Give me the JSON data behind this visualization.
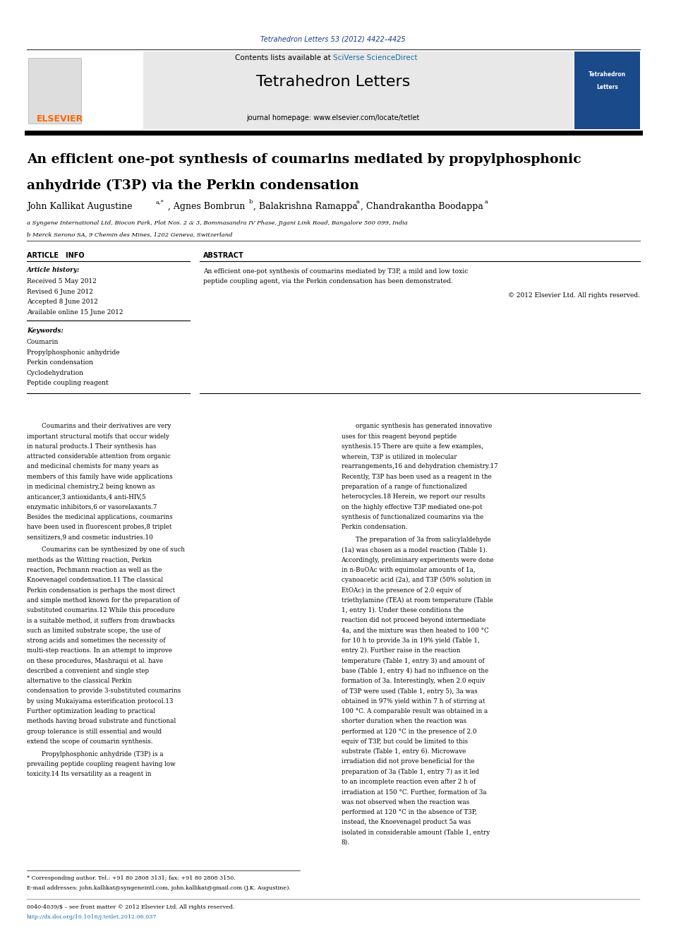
{
  "page_width": 9.92,
  "page_height": 13.23,
  "bg_color": "#ffffff",
  "top_citation": "Tetrahedron Letters 53 (2012) 4422–4425",
  "top_citation_color": "#1a3a8c",
  "header_bg": "#e8e8e8",
  "header_text": "Contents lists available at ",
  "header_sciverse": "SciVerse ScienceDirect",
  "header_sciverse_color": "#1a6fa8",
  "journal_name": "Tetrahedron Letters",
  "journal_homepage": "journal homepage: www.elsevier.com/locate/tetlet",
  "article_title_line1": "An efficient one-pot synthesis of coumarins mediated by propylphosphonic",
  "article_title_line2": "anhydride (T3P) via the Perkin condensation",
  "affil_a": "a Syngene International Ltd, Biocon Park, Plot Nos. 2 & 3, Bommasandra IV Phase, Jigani Link Road, Bangalore 560 099, India",
  "affil_b": "b Merck Serono SA, 9 Chemin des Mines, 1202 Geneva, Switzerland",
  "article_info_header": "ARTICLE   INFO",
  "abstract_header": "ABSTRACT",
  "article_history_label": "Article history:",
  "received": "Received 5 May 2012",
  "revised": "Revised 6 June 2012",
  "accepted": "Accepted 8 June 2012",
  "available": "Available online 15 June 2012",
  "keywords_label": "Keywords:",
  "keywords": [
    "Coumarin",
    "Propylphosphonic anhydride",
    "Perkin condensation",
    "Cyclodehydration",
    "Peptide coupling reagent"
  ],
  "abstract_text": "An efficient one-pot synthesis of coumarins mediated by T3P, a mild and low toxic peptide coupling agent, via the Perkin condensation has been demonstrated.",
  "copyright": "© 2012 Elsevier Ltd. All rights reserved.",
  "body_col1_para1": "Coumarins and their derivatives are very important structural motifs that occur widely in natural products.1 Their synthesis has attracted considerable attention from organic and medicinal chemists for many years as members of this family have wide applications in medicinal chemistry,2 being known as anticancer,3 antioxidants,4 anti-HIV,5 enzymatic inhibitors,6 or vasorelaxants.7 Besides the medicinal applications, coumarins have been used in fluorescent probes,8 triplet sensitizers,9 and cosmetic industries.10",
  "body_col1_para2": "Coumarins can be synthesized by one of such methods as the Witting reaction, Perkin reaction, Pechmann reaction as well as the Knoevenagel condensation.11 The classical Perkin condensation is perhaps the most direct and simple method known for the preparation of substituted coumarins.12 While this procedure is a suitable method, it suffers from drawbacks such as limited substrate scope, the use of strong acids and sometimes the necessity of multi-step reactions. In an attempt to improve on these procedures, Mashraqui et al. have described a convenient and single step alternative to the classical Perkin condensation to provide 3-substituted coumarins by using Mukaiyama esterification protocol.13 Further optimization leading to practical methods having broad substrate and functional group tolerance is still essential and would extend the scope of coumarin synthesis.",
  "body_col1_para3": "Propylphosphonic anhydride (T3P) is a prevailing peptide coupling reagent having low toxicity.14 Its versatility as a reagent in",
  "body_col2_para1": "organic synthesis has generated innovative uses for this reagent beyond peptide synthesis.15 There are quite a few examples, wherein, T3P is utilized in molecular rearrangements,16 and dehydration chemistry.17 Recently, T3P has been used as a reagent in the preparation of a range of functionalized heterocycles.18 Herein, we report our results on the highly effective T3P mediated one-pot synthesis of functionalized coumarins via the Perkin condensation.",
  "body_col2_para2": "The preparation of 3a from salicylaldehyde (1a) was chosen as a model reaction (Table 1). Accordingly, preliminary experiments were done in n-BuOAc with equimolar amounts of 1a, cyanoacetic acid (2a), and T3P (50% solution in EtOAc) in the presence of 2.0 equiv of triethylamine (TEA) at room temperature (Table 1, entry 1). Under these conditions the reaction did not proceed beyond intermediate 4a, and the mixture was then heated to 100 °C for 10 h to provide 3a in 19% yield (Table 1, entry 2). Further raise in the reaction temperature (Table 1, entry 3) and amount of base (Table 1, entry 4) had no influence on the formation of 3a. Interestingly, when 2.0 equiv of T3P were used (Table 1, entry 5), 3a was obtained in 97% yield within 7 h of stirring at 100 °C. A comparable result was obtained in a shorter duration when the reaction was performed at 120 °C in the presence of 2.0 equiv of T3P, but could be limited to this substrate (Table 1, entry 6). Microwave irradiation did not prove beneficial for the preparation of 3a (Table 1, entry 7) as it led to an incomplete reaction even after 2 h of irradiation at 150 °C. Further, formation of 3a was not observed when the reaction was performed at 120 °C in the absence of T3P, instead, the Knoevenagel product 5a was isolated in considerable amount (Table 1, entry 8).",
  "footnote_star": "* Corresponding author. Tel.: +91 80 2808 3131; fax: +91 80 2808 3150.",
  "footnote_email": "E-mail addresses: john.kallikat@syngeneintl.com, john.kallikat@gmail.com (J.K. Augustine).",
  "issn_line": "0040-4039/$ – see front matter © 2012 Elsevier Ltd. All rights reserved.",
  "doi_line": "http://dx.doi.org/10.1016/j.tetlet.2012.06.037",
  "link_color": "#1a6fa8",
  "elsevier_color": "#ff6600"
}
